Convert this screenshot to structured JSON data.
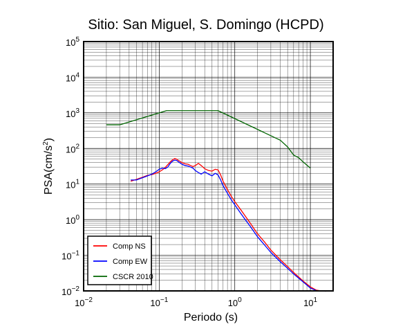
{
  "chart_data": {
    "type": "line",
    "title": "Sitio: San Miguel, S. Domingo (HCPD)",
    "xlabel": "Periodo (s)",
    "ylabel_main": "PSA(cm/s",
    "ylabel_sup": "2",
    "ylabel_end": ")",
    "x_scale": "log",
    "y_scale": "log",
    "xlim": [
      0.01,
      20
    ],
    "ylim": [
      0.01,
      100000
    ],
    "grid": true,
    "legend_position": "bottom-left",
    "x_ticks": [
      {
        "value": 0.01,
        "base": "10",
        "exp": "−2"
      },
      {
        "value": 0.1,
        "base": "10",
        "exp": "−1"
      },
      {
        "value": 1,
        "base": "10",
        "exp": "0"
      },
      {
        "value": 10,
        "base": "10",
        "exp": "1"
      }
    ],
    "y_ticks": [
      {
        "value": 0.01,
        "base": "10",
        "exp": "−2"
      },
      {
        "value": 0.1,
        "base": "10",
        "exp": "−1"
      },
      {
        "value": 1,
        "base": "10",
        "exp": "0"
      },
      {
        "value": 10,
        "base": "10",
        "exp": "1"
      },
      {
        "value": 100,
        "base": "10",
        "exp": "2"
      },
      {
        "value": 1000,
        "base": "10",
        "exp": "3"
      },
      {
        "value": 10000,
        "base": "10",
        "exp": "4"
      },
      {
        "value": 100000,
        "base": "10",
        "exp": "5"
      }
    ],
    "series": [
      {
        "name": "Comp NS",
        "color": "#ff0000",
        "x": [
          0.042,
          0.05,
          0.055,
          0.06,
          0.065,
          0.07,
          0.08,
          0.09,
          0.1,
          0.11,
          0.12,
          0.13,
          0.14,
          0.15,
          0.16,
          0.17,
          0.18,
          0.2,
          0.22,
          0.24,
          0.26,
          0.28,
          0.3,
          0.33,
          0.36,
          0.4,
          0.45,
          0.5,
          0.55,
          0.6,
          0.65,
          0.7,
          0.8,
          0.9,
          1.0,
          1.2,
          1.4,
          1.6,
          2.0,
          2.5,
          3.0,
          4.0,
          5.0,
          6.0,
          8.0,
          10.0,
          12.0,
          14.0,
          16.0
        ],
        "y": [
          12.0,
          13.5,
          14.5,
          15.5,
          16.5,
          17.5,
          18.5,
          20.0,
          22.0,
          25.0,
          29.0,
          35.0,
          42.0,
          48.0,
          52.0,
          50.0,
          46.0,
          40.0,
          37.0,
          36.0,
          33.0,
          31.0,
          33.0,
          38.0,
          33.0,
          27.0,
          24.0,
          23.0,
          26.0,
          25.0,
          18.0,
          12.0,
          7.0,
          4.5,
          3.2,
          1.9,
          1.2,
          0.8,
          0.4,
          0.23,
          0.14,
          0.075,
          0.048,
          0.033,
          0.019,
          0.013,
          0.0105,
          0.01,
          0.0098
        ]
      },
      {
        "name": "Comp EW",
        "color": "#0000ff",
        "x": [
          0.042,
          0.05,
          0.055,
          0.06,
          0.065,
          0.07,
          0.08,
          0.09,
          0.1,
          0.11,
          0.12,
          0.13,
          0.14,
          0.15,
          0.16,
          0.17,
          0.18,
          0.2,
          0.22,
          0.24,
          0.26,
          0.28,
          0.3,
          0.33,
          0.36,
          0.4,
          0.45,
          0.5,
          0.55,
          0.6,
          0.65,
          0.7,
          0.8,
          0.9,
          1.0,
          1.2,
          1.4,
          1.6,
          2.0,
          2.5,
          3.0,
          4.0,
          5.0,
          6.0,
          8.0,
          10.0,
          12.0,
          14.0,
          16.0
        ],
        "y": [
          13.0,
          13.0,
          14.0,
          15.0,
          16.0,
          17.0,
          19.0,
          22.0,
          26.0,
          28.0,
          27.0,
          30.0,
          38.0,
          44.0,
          47.0,
          46.0,
          42.0,
          36.0,
          33.0,
          32.0,
          30.0,
          28.0,
          24.0,
          21.0,
          19.0,
          22.0,
          19.0,
          17.0,
          20.0,
          18.0,
          13.0,
          9.0,
          5.5,
          3.6,
          2.6,
          1.5,
          0.95,
          0.65,
          0.33,
          0.19,
          0.12,
          0.066,
          0.043,
          0.03,
          0.018,
          0.012,
          0.0102,
          0.01,
          0.0098
        ]
      },
      {
        "name": "CSCR 2010",
        "color": "#006400",
        "x": [
          0.02,
          0.03,
          0.125,
          0.6,
          4.0,
          5.0,
          6.0,
          7.0,
          8.0,
          10.0
        ],
        "y": [
          460,
          460,
          1150,
          1150,
          170,
          110,
          65,
          55,
          42,
          28
        ]
      }
    ]
  }
}
